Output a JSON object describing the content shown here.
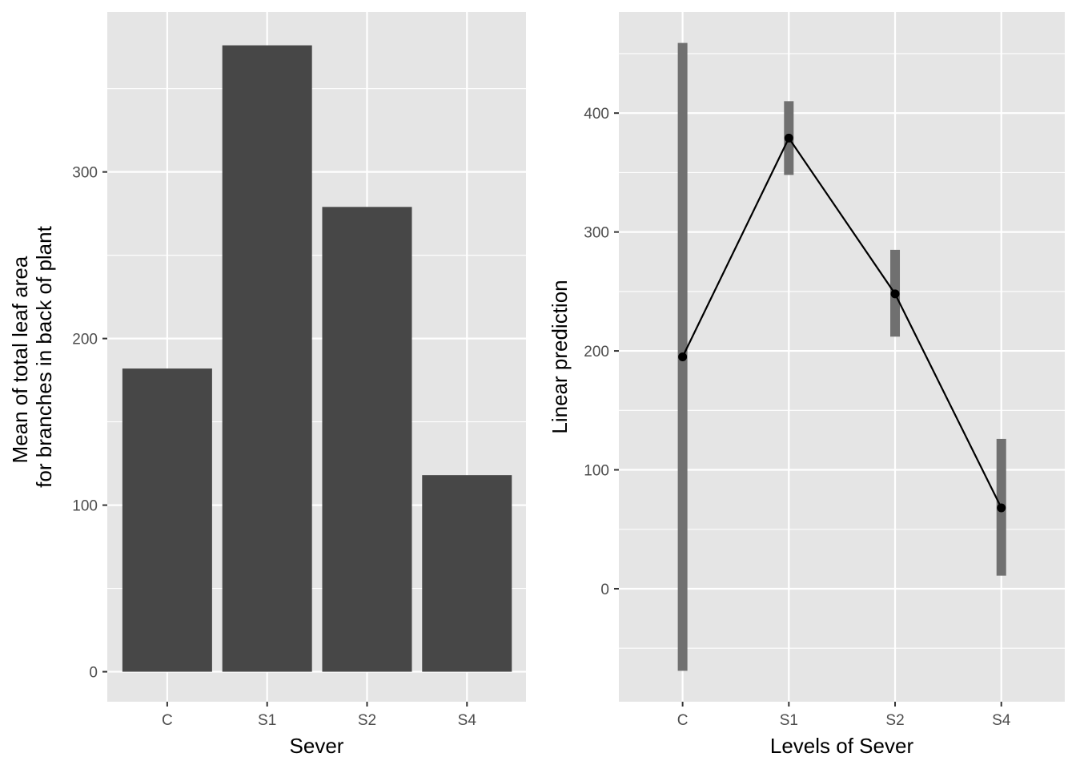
{
  "colors": {
    "panel_background": "#e5e5e5",
    "grid": "#ffffff",
    "bar_fill": "#474747",
    "ci_bar": "#707070",
    "line_point": "#000000",
    "tick_text": "#4d4d4d"
  },
  "chart_data": [
    {
      "type": "bar",
      "categories": [
        "C",
        "S1",
        "S2",
        "S4"
      ],
      "values": [
        182,
        376,
        279,
        118
      ],
      "xlabel": "Sever",
      "ylabel_lines": [
        "Mean of total leaf area",
        "for branches in back of plant"
      ],
      "ylim": [
        -18,
        396
      ],
      "yticks": [
        0,
        100,
        200,
        300
      ],
      "ytick_labels": [
        "0",
        "100",
        "200",
        "300"
      ],
      "grid": true,
      "legend": "none"
    },
    {
      "type": "line",
      "categories": [
        "C",
        "S1",
        "S2",
        "S4"
      ],
      "values": [
        195,
        379,
        248,
        68
      ],
      "ci_lower": [
        -69,
        348,
        212,
        11
      ],
      "ci_upper": [
        459,
        410,
        285,
        126
      ],
      "xlabel": "Levels of Sever",
      "ylabel": "Linear prediction",
      "ylim": [
        -95,
        485
      ],
      "yticks": [
        0,
        100,
        200,
        300,
        400
      ],
      "ytick_labels": [
        "0",
        "100",
        "200",
        "300",
        "400"
      ],
      "grid": true,
      "legend": "none"
    }
  ]
}
